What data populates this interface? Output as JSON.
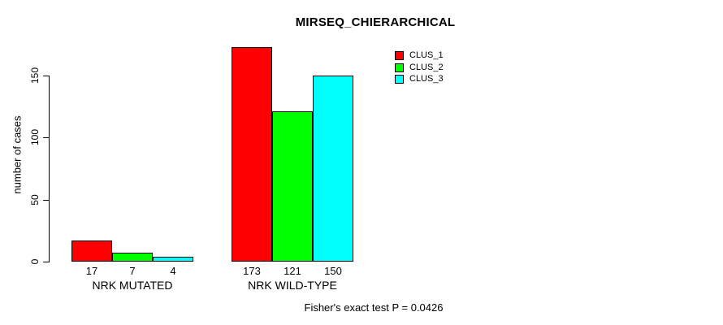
{
  "chart_data": {
    "type": "bar",
    "title": "MIRSEQ_CHIERARCHICAL",
    "ylabel": "number of cases",
    "xlabel": "",
    "categories": [
      "NRK MUTATED",
      "NRK WILD-TYPE"
    ],
    "series": [
      {
        "name": "CLUS_1",
        "color": "#FF0000",
        "values": [
          17,
          173
        ]
      },
      {
        "name": "CLUS_2",
        "color": "#00FF00",
        "values": [
          7,
          121
        ]
      },
      {
        "name": "CLUS_3",
        "color": "#00FFFF",
        "values": [
          4,
          150
        ]
      }
    ],
    "show_bar_value_labels": true,
    "yticks": [
      0,
      50,
      100,
      150
    ],
    "ylim": [
      0,
      175
    ],
    "grid": false,
    "legend": {
      "position": "top-right",
      "entries": [
        "CLUS_1",
        "CLUS_2",
        "CLUS_3"
      ]
    },
    "annotation": "Fisher's exact test P = 0.0426"
  }
}
